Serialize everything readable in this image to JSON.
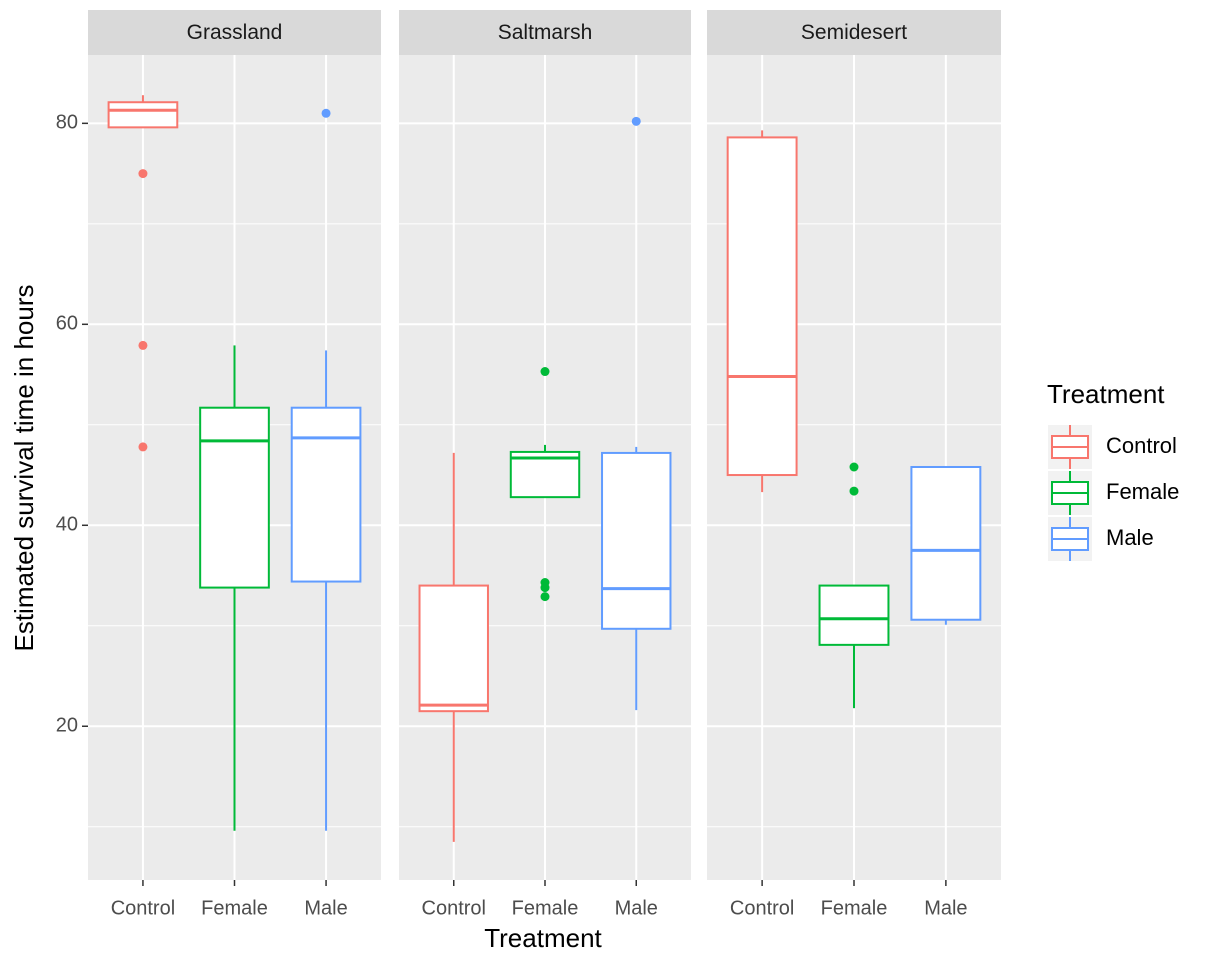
{
  "chart_data": {
    "type": "box",
    "ylabel": "Estimated survival time in hours",
    "xlabel": "Treatment",
    "legend_title": "Treatment",
    "categories": [
      "Control",
      "Female",
      "Male"
    ],
    "colors": [
      "#F8766D",
      "#00BA38",
      "#619CFF"
    ],
    "ylim": [
      4.7,
      86.8
    ],
    "yticks": [
      20,
      40,
      60,
      80
    ],
    "minor_yticks": [
      10,
      30,
      50,
      70
    ],
    "grid": true,
    "panels": [
      {
        "title": "Grassland",
        "boxes": [
          {
            "whisker_low": 79.6,
            "q1": 79.6,
            "median": 81.3,
            "q3": 82.1,
            "whisker_high": 82.8,
            "outliers": [
              75.0,
              57.9,
              47.8
            ]
          },
          {
            "whisker_low": 9.6,
            "q1": 33.8,
            "median": 48.4,
            "q3": 51.7,
            "whisker_high": 57.9,
            "outliers": []
          },
          {
            "whisker_low": 9.6,
            "q1": 34.4,
            "median": 48.7,
            "q3": 51.7,
            "whisker_high": 57.4,
            "outliers": [
              81.0
            ]
          }
        ]
      },
      {
        "title": "Saltmarsh",
        "boxes": [
          {
            "whisker_low": 8.5,
            "q1": 21.5,
            "median": 22.1,
            "q3": 34.0,
            "whisker_high": 47.2,
            "outliers": []
          },
          {
            "whisker_low": 42.8,
            "q1": 42.8,
            "median": 46.7,
            "q3": 47.3,
            "whisker_high": 48.0,
            "outliers": [
              55.3,
              34.3,
              33.8,
              32.9
            ]
          },
          {
            "whisker_low": 21.6,
            "q1": 29.7,
            "median": 33.7,
            "q3": 47.2,
            "whisker_high": 47.8,
            "outliers": [
              80.2
            ]
          }
        ]
      },
      {
        "title": "Semidesert",
        "boxes": [
          {
            "whisker_low": 43.3,
            "q1": 45.0,
            "median": 54.8,
            "q3": 78.6,
            "whisker_high": 79.3,
            "outliers": []
          },
          {
            "whisker_low": 21.8,
            "q1": 28.1,
            "median": 30.7,
            "q3": 34.0,
            "whisker_high": 34.0,
            "outliers": [
              45.8,
              43.4
            ]
          },
          {
            "whisker_low": 30.1,
            "q1": 30.6,
            "median": 37.5,
            "q3": 45.8,
            "whisker_high": 45.9,
            "outliers": []
          }
        ]
      }
    ]
  }
}
